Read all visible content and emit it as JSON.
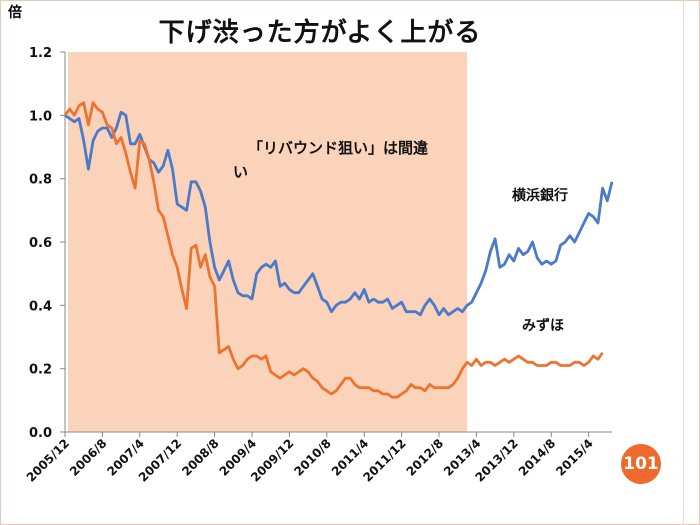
{
  "slide": {
    "page_number": "101"
  },
  "colors": {
    "highlight": "#fbd3bb",
    "yokohama": "#4a7ac8",
    "mizuho": "#ec7430",
    "badge": "#ee6a2c"
  },
  "chart_data": {
    "type": "line",
    "title": "下げ渋った方がよく上がる",
    "ylabel": "倍",
    "ylim": [
      0,
      1.2
    ],
    "yticks": [
      0,
      0.2,
      0.4,
      0.6,
      0.8,
      1.0,
      1.2
    ],
    "ytick_labels": [
      "0.0",
      "0.2",
      "0.4",
      "0.6",
      "0.8",
      "1.0",
      "1.2"
    ],
    "x_start_month": "2005/12",
    "x_tick_labels": [
      "2005/12",
      "2006/8",
      "2007/4",
      "2007/12",
      "2008/8",
      "2009/4",
      "2009/12",
      "2010/8",
      "2011/4",
      "2011/12",
      "2012/8",
      "2013/4",
      "2013/12",
      "2014/8",
      "2015/4"
    ],
    "x_tick_month_index": [
      0,
      8,
      16,
      24,
      32,
      40,
      48,
      56,
      64,
      72,
      80,
      88,
      96,
      104,
      112
    ],
    "highlight_region": {
      "start_month_index": 0,
      "end_month_index": 86,
      "label": "「リバウンド狙い」は間違い"
    },
    "series": [
      {
        "name": "横浜銀行",
        "values": [
          1.0,
          0.99,
          0.98,
          0.99,
          0.92,
          0.83,
          0.92,
          0.95,
          0.96,
          0.96,
          0.93,
          0.96,
          1.01,
          1.0,
          0.91,
          0.91,
          0.94,
          0.9,
          0.86,
          0.85,
          0.82,
          0.84,
          0.89,
          0.83,
          0.72,
          0.71,
          0.7,
          0.79,
          0.79,
          0.76,
          0.71,
          0.6,
          0.52,
          0.48,
          0.51,
          0.54,
          0.48,
          0.44,
          0.43,
          0.43,
          0.42,
          0.5,
          0.52,
          0.53,
          0.52,
          0.54,
          0.46,
          0.47,
          0.45,
          0.44,
          0.44,
          0.46,
          0.48,
          0.5,
          0.46,
          0.42,
          0.41,
          0.38,
          0.4,
          0.41,
          0.41,
          0.42,
          0.44,
          0.42,
          0.45,
          0.41,
          0.42,
          0.41,
          0.41,
          0.42,
          0.39,
          0.4,
          0.41,
          0.38,
          0.38,
          0.38,
          0.37,
          0.4,
          0.42,
          0.4,
          0.37,
          0.39,
          0.37,
          0.38,
          0.39,
          0.38,
          0.4,
          0.41,
          0.44,
          0.47,
          0.51,
          0.57,
          0.61,
          0.52,
          0.53,
          0.56,
          0.54,
          0.58,
          0.56,
          0.57,
          0.6,
          0.55,
          0.53,
          0.54,
          0.53,
          0.54,
          0.59,
          0.6,
          0.62,
          0.6,
          0.63,
          0.66,
          0.69,
          0.68,
          0.66,
          0.77,
          0.73,
          0.79
        ]
      },
      {
        "name": "みずほ",
        "values": [
          1.0,
          1.02,
          1.0,
          1.03,
          1.04,
          0.97,
          1.04,
          1.02,
          1.01,
          0.97,
          0.96,
          0.91,
          0.93,
          0.88,
          0.82,
          0.77,
          0.92,
          0.91,
          0.86,
          0.79,
          0.7,
          0.68,
          0.62,
          0.56,
          0.52,
          0.45,
          0.39,
          0.58,
          0.59,
          0.52,
          0.56,
          0.49,
          0.46,
          0.25,
          0.26,
          0.27,
          0.23,
          0.2,
          0.21,
          0.23,
          0.24,
          0.24,
          0.23,
          0.24,
          0.19,
          0.18,
          0.17,
          0.18,
          0.19,
          0.18,
          0.19,
          0.2,
          0.19,
          0.17,
          0.16,
          0.14,
          0.13,
          0.12,
          0.13,
          0.15,
          0.17,
          0.17,
          0.15,
          0.14,
          0.14,
          0.14,
          0.13,
          0.13,
          0.12,
          0.12,
          0.11,
          0.11,
          0.12,
          0.13,
          0.15,
          0.14,
          0.14,
          0.13,
          0.15,
          0.14,
          0.14,
          0.14,
          0.14,
          0.15,
          0.17,
          0.2,
          0.22,
          0.21,
          0.23,
          0.21,
          0.22,
          0.22,
          0.21,
          0.22,
          0.23,
          0.22,
          0.23,
          0.24,
          0.23,
          0.22,
          0.22,
          0.21,
          0.21,
          0.21,
          0.22,
          0.22,
          0.21,
          0.21,
          0.21,
          0.22,
          0.22,
          0.21,
          0.22,
          0.24,
          0.23,
          0.25
        ]
      }
    ]
  }
}
